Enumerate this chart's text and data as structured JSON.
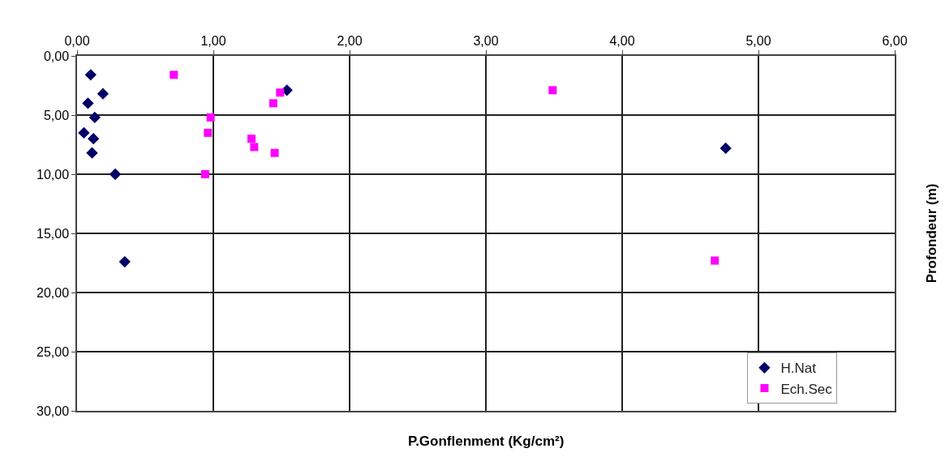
{
  "chart_data": {
    "type": "scatter",
    "xlabel": "P.Gonflenment (Kg/cm²)",
    "ylabel": "Profondeur (m)",
    "xlim": [
      0,
      6
    ],
    "xticks": [
      {
        "value": 0,
        "label": "0,00"
      },
      {
        "value": 1,
        "label": "1,00"
      },
      {
        "value": 2,
        "label": "2,00"
      },
      {
        "value": 3,
        "label": "3,00"
      },
      {
        "value": 4,
        "label": "4,00"
      },
      {
        "value": 5,
        "label": "5,00"
      },
      {
        "value": 6,
        "label": "6,00"
      }
    ],
    "ylim": [
      30,
      0
    ],
    "yticks": [
      {
        "value": 0,
        "label": "0,00"
      },
      {
        "value": 5,
        "label": "5,00"
      },
      {
        "value": 10,
        "label": "10,00"
      },
      {
        "value": 15,
        "label": "15,00"
      },
      {
        "value": 20,
        "label": "20,00"
      },
      {
        "value": 25,
        "label": "25,00"
      },
      {
        "value": 30,
        "label": "30,00"
      }
    ],
    "grid": true,
    "legend": "bottom right",
    "series": [
      {
        "name": "H.Nat",
        "color": "#000066",
        "marker": "diamond",
        "x": [
          0.1,
          0.19,
          0.08,
          0.13,
          0.05,
          0.12,
          0.11,
          0.28,
          0.35,
          1.54,
          4.76
        ],
        "values": [
          1.6,
          3.2,
          4.0,
          5.2,
          6.5,
          7.0,
          8.2,
          10.0,
          17.4,
          2.9,
          7.8
        ]
      },
      {
        "name": "Ech.Sec",
        "color": "#ff00ff",
        "marker": "square",
        "x": [
          0.71,
          0.98,
          0.96,
          0.94,
          1.44,
          1.49,
          1.28,
          1.3,
          1.45,
          3.49,
          4.68
        ],
        "values": [
          1.6,
          5.2,
          6.5,
          10.0,
          4.0,
          3.1,
          7.0,
          7.7,
          8.2,
          2.9,
          17.3
        ]
      }
    ]
  }
}
